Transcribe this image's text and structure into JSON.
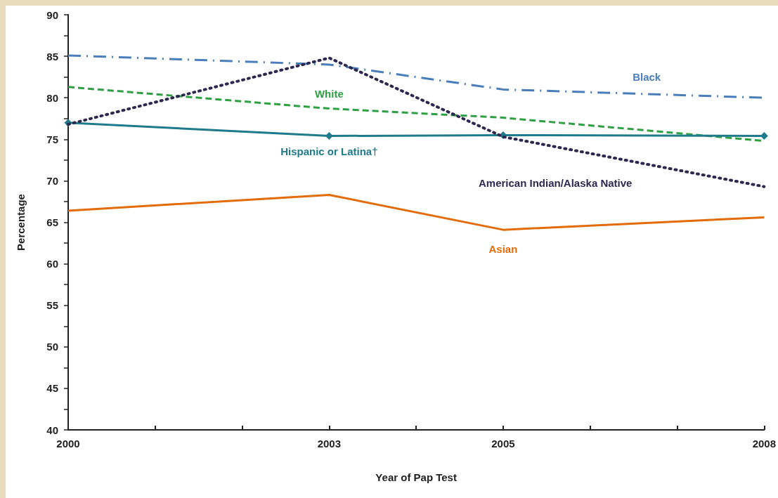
{
  "chart_data": {
    "type": "line",
    "xlabel": "Year of Pap Test",
    "ylabel": "Percentage",
    "x": [
      2000,
      2003,
      2005,
      2008
    ],
    "xlim": [
      2000,
      2008
    ],
    "xticks": [
      2000,
      {
        "value": 2001,
        "label": null
      },
      {
        "value": 2002,
        "label": null
      },
      2003,
      {
        "value": 2004,
        "label": null
      },
      2005,
      {
        "value": 2006,
        "label": null
      },
      {
        "value": 2007,
        "label": null
      },
      2008
    ],
    "ylim": [
      40,
      90
    ],
    "yticks": [
      40,
      {
        "value": 42.5,
        "label": null
      },
      45,
      {
        "value": 47.5,
        "label": null
      },
      50,
      {
        "value": 52.5,
        "label": null
      },
      55,
      {
        "value": 57.5,
        "label": null
      },
      60,
      {
        "value": 62.5,
        "label": null
      },
      65,
      {
        "value": 67.5,
        "label": null
      },
      70,
      {
        "value": 72.5,
        "label": null
      },
      75,
      {
        "value": 77.5,
        "label": null
      },
      80,
      {
        "value": 82.5,
        "label": null
      },
      85,
      {
        "value": 87.5,
        "label": null
      },
      90
    ],
    "grid": false,
    "legend": false,
    "series": [
      {
        "name": "Black",
        "color": "#4a7ebb",
        "line_style": "dashdot",
        "marker": "none",
        "values": [
          85.1,
          84,
          81,
          80
        ]
      },
      {
        "name": "White",
        "color": "#2ea043",
        "line_style": "dashed",
        "marker": "none",
        "values": [
          81.3,
          78.7,
          77.6,
          74.8
        ]
      },
      {
        "name": "Hispanic or Latina†",
        "color": "#1f7a8c",
        "line_style": "solid",
        "marker": "diamond",
        "values": [
          77,
          75.4,
          75.5,
          75.4
        ]
      },
      {
        "name": "American Indian/Alaska Native",
        "color": "#2c2850",
        "line_style": "dotted",
        "marker": "none",
        "values": [
          76.8,
          84.8,
          75.3,
          69.3
        ]
      },
      {
        "name": "Asian",
        "color": "#e36c0a",
        "line_style": "solid",
        "marker": "none",
        "values": [
          66.4,
          68.3,
          64.1,
          65.6
        ]
      }
    ]
  }
}
